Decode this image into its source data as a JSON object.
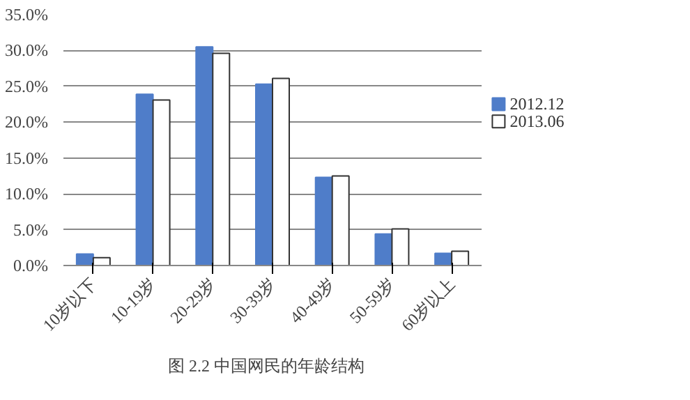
{
  "chart_data": {
    "type": "bar",
    "categories": [
      "10岁以下",
      "10-19岁",
      "20-29岁",
      "30-39岁",
      "40-49岁",
      "50-59岁",
      "60岁以上"
    ],
    "series": [
      {
        "name": "2012.12",
        "color": "#4f7dc9",
        "values": [
          1.6,
          23.9,
          30.5,
          25.3,
          12.3,
          4.4,
          1.7
        ]
      },
      {
        "name": "2013.06",
        "color": "#ffffff",
        "values": [
          1.1,
          23.1,
          29.6,
          26.1,
          12.5,
          5.1,
          2.0
        ]
      }
    ],
    "ylim": [
      0,
      35
    ],
    "yticks": [
      {
        "value": 0,
        "label": "0.0%"
      },
      {
        "value": 5,
        "label": "5.0%"
      },
      {
        "value": 10,
        "label": "10.0%"
      },
      {
        "value": 15,
        "label": "15.0%"
      },
      {
        "value": 20,
        "label": "20.0%"
      },
      {
        "value": 25,
        "label": "25.0%"
      },
      {
        "value": 30,
        "label": "30.0%"
      },
      {
        "value": 35,
        "label": "35.0%"
      }
    ],
    "grid": "y",
    "legend": "right",
    "annotations": [
      "图 2.2    中国网民的年龄结构"
    ]
  }
}
